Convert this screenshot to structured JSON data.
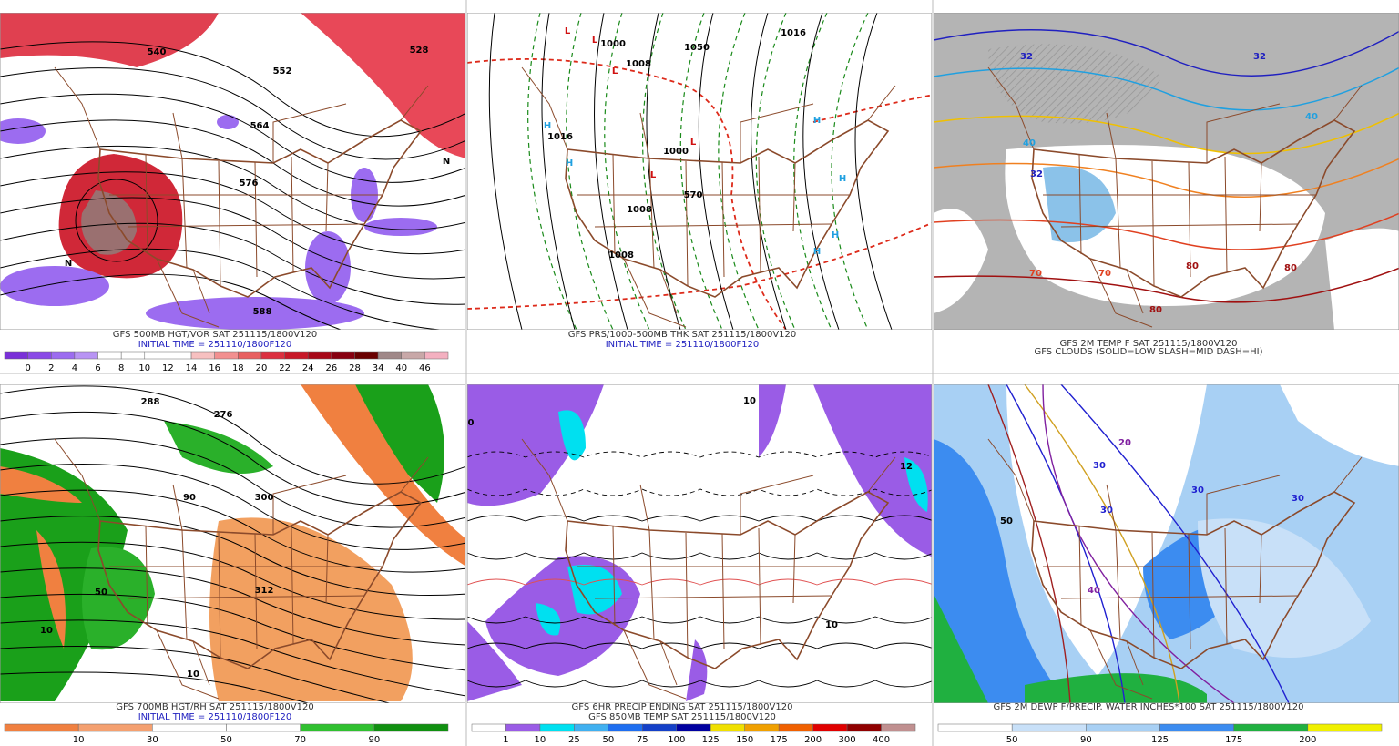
{
  "panels": [
    {
      "title": "GFS 500MB HGT/VOR SAT 251115/1800V120",
      "subtitle": "INITIAL TIME = 251110/1800F120",
      "colorbar": {
        "labels": [
          0,
          2,
          4,
          6,
          8,
          10,
          12,
          14,
          16,
          18,
          20,
          22,
          24,
          26,
          28,
          34,
          40,
          46
        ],
        "colors": [
          "#7a30d8",
          "#8a4ae6",
          "#9c6cf0",
          "#b894f4",
          "#ffffff",
          "#ffffff",
          "#ffffff",
          "#ffffff",
          "#f7c0c0",
          "#f29090",
          "#e86060",
          "#dc3040",
          "#c81828",
          "#a80818",
          "#880010",
          "#6a0000",
          "#a08888",
          "#c8a8a8",
          "#f4b0c0"
        ]
      },
      "map_labels": [
        "540",
        "552",
        "564",
        "576",
        "588",
        "528",
        "N",
        "N"
      ]
    },
    {
      "title": "GFS PRS/1000-500MB THK SAT 251115/1800V120",
      "subtitle": "INITIAL TIME = 251110/1800F120",
      "map_labels": [
        "L",
        "L",
        "L",
        "L",
        "L",
        "H",
        "H",
        "H",
        "H",
        "H",
        "H",
        "1000",
        "1008",
        "1016",
        "1016",
        "1008",
        "1008",
        "1000",
        "1050",
        "570"
      ]
    },
    {
      "title": "GFS 2M TEMP F SAT 251115/1800V120",
      "subtitle": "GFS CLOUDS (SOLID=LOW SLASH=MID DASH=HI)",
      "map_labels": [
        "32",
        "32",
        "32",
        "40",
        "40",
        "70",
        "70",
        "80",
        "80",
        "80"
      ]
    },
    {
      "title": "GFS 700MB HGT/RH SAT 251115/1800V120",
      "subtitle": "INITIAL TIME = 251110/1800F120",
      "colorbar": {
        "labels": [
          10,
          30,
          50,
          70,
          90
        ],
        "colors": [
          "#f08040",
          "#f4a070",
          "#ffffff",
          "#ffffff",
          "#30c030",
          "#109010"
        ]
      },
      "map_labels": [
        "288",
        "276",
        "300",
        "312",
        "50",
        "90",
        "10",
        "10"
      ]
    },
    {
      "title": "GFS 6HR PRECIP ENDING SAT 251115/1800V120",
      "subtitle": "GFS 850MB TEMP SAT 251115/1800V120",
      "colorbar": {
        "labels": [
          1,
          10,
          25,
          50,
          75,
          100,
          125,
          150,
          175,
          200,
          300,
          400
        ],
        "colors": [
          "#ffffff",
          "#9a5ce6",
          "#00e0f0",
          "#40b0f0",
          "#1e6ef0",
          "#1440c8",
          "#0000a0",
          "#f0e000",
          "#f0a000",
          "#f06000",
          "#e00000",
          "#900000",
          "#c09090"
        ]
      },
      "map_labels": [
        "10",
        "12",
        "0",
        "10"
      ]
    },
    {
      "title": "GFS 2M DEWP F/PRECIP. WATER INCHES*100 SAT 251115/1800V120",
      "colorbar": {
        "labels": [
          50,
          90,
          125,
          175,
          200
        ],
        "colors": [
          "#ffffff",
          "#c8e0f8",
          "#a8d0f4",
          "#3c8cf0",
          "#20b040",
          "#f0f000"
        ]
      },
      "map_labels": [
        "30",
        "30",
        "30",
        "40",
        "50",
        "20",
        "30"
      ]
    }
  ]
}
